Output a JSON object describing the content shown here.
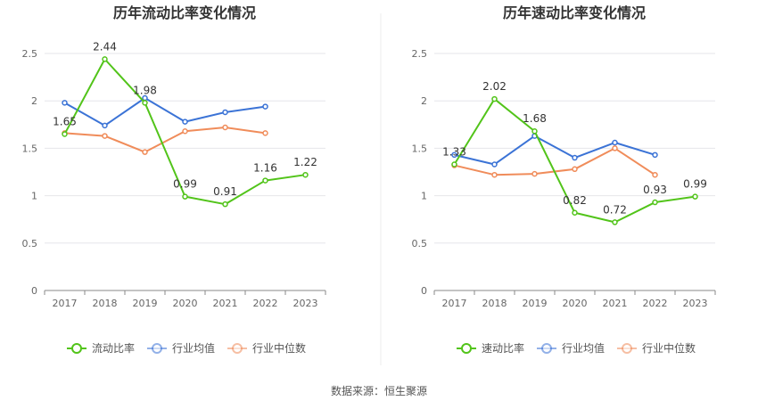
{
  "source": "数据来源：恒生聚源",
  "colors": {
    "company": "#52c41a",
    "industry_avg": "#3b73d6",
    "industry_median": "#f08c5a",
    "grid": "#e6e6ea",
    "axis": "#888888",
    "divider": "#eeeeee"
  },
  "chart_data": [
    {
      "type": "line",
      "title": "历年流动比率变化情况",
      "x": [
        "2017",
        "2018",
        "2019",
        "2020",
        "2021",
        "2022",
        "2023"
      ],
      "ylim": [
        0,
        2.5
      ],
      "yticks": [
        0,
        0.5,
        1,
        1.5,
        2,
        2.5
      ],
      "ytick_labels": [
        "0",
        "0.5",
        "1",
        "1.5",
        "2",
        "2.5"
      ],
      "grid": true,
      "legend_position": "bottom",
      "series": [
        {
          "name": "流动比率",
          "key": "company",
          "values": [
            1.65,
            2.44,
            1.98,
            0.99,
            0.91,
            1.16,
            1.22
          ],
          "labels": [
            "1.65",
            "2.44",
            "1.98",
            "0.99",
            "0.91",
            "1.16",
            "1.22"
          ]
        },
        {
          "name": "行业均值",
          "key": "industry_avg",
          "values": [
            1.98,
            1.74,
            2.03,
            1.78,
            1.88,
            1.94,
            null
          ]
        },
        {
          "name": "行业中位数",
          "key": "industry_median",
          "values": [
            1.66,
            1.63,
            1.46,
            1.68,
            1.72,
            1.66,
            null
          ]
        }
      ]
    },
    {
      "type": "line",
      "title": "历年速动比率变化情况",
      "x": [
        "2017",
        "2018",
        "2019",
        "2020",
        "2021",
        "2022",
        "2023"
      ],
      "ylim": [
        0,
        2.5
      ],
      "yticks": [
        0,
        0.5,
        1,
        1.5,
        2,
        2.5
      ],
      "ytick_labels": [
        "0",
        "0.5",
        "1",
        "1.5",
        "2",
        "2.5"
      ],
      "grid": true,
      "legend_position": "bottom",
      "series": [
        {
          "name": "速动比率",
          "key": "company",
          "values": [
            1.33,
            2.02,
            1.68,
            0.82,
            0.72,
            0.93,
            0.99
          ],
          "labels": [
            "1.33",
            "2.02",
            "1.68",
            "0.82",
            "0.72",
            "0.93",
            "0.99"
          ]
        },
        {
          "name": "行业均值",
          "key": "industry_avg",
          "values": [
            1.43,
            1.33,
            1.63,
            1.4,
            1.56,
            1.43,
            null
          ]
        },
        {
          "name": "行业中位数",
          "key": "industry_median",
          "values": [
            1.32,
            1.22,
            1.23,
            1.28,
            1.5,
            1.22,
            null
          ]
        }
      ]
    }
  ]
}
